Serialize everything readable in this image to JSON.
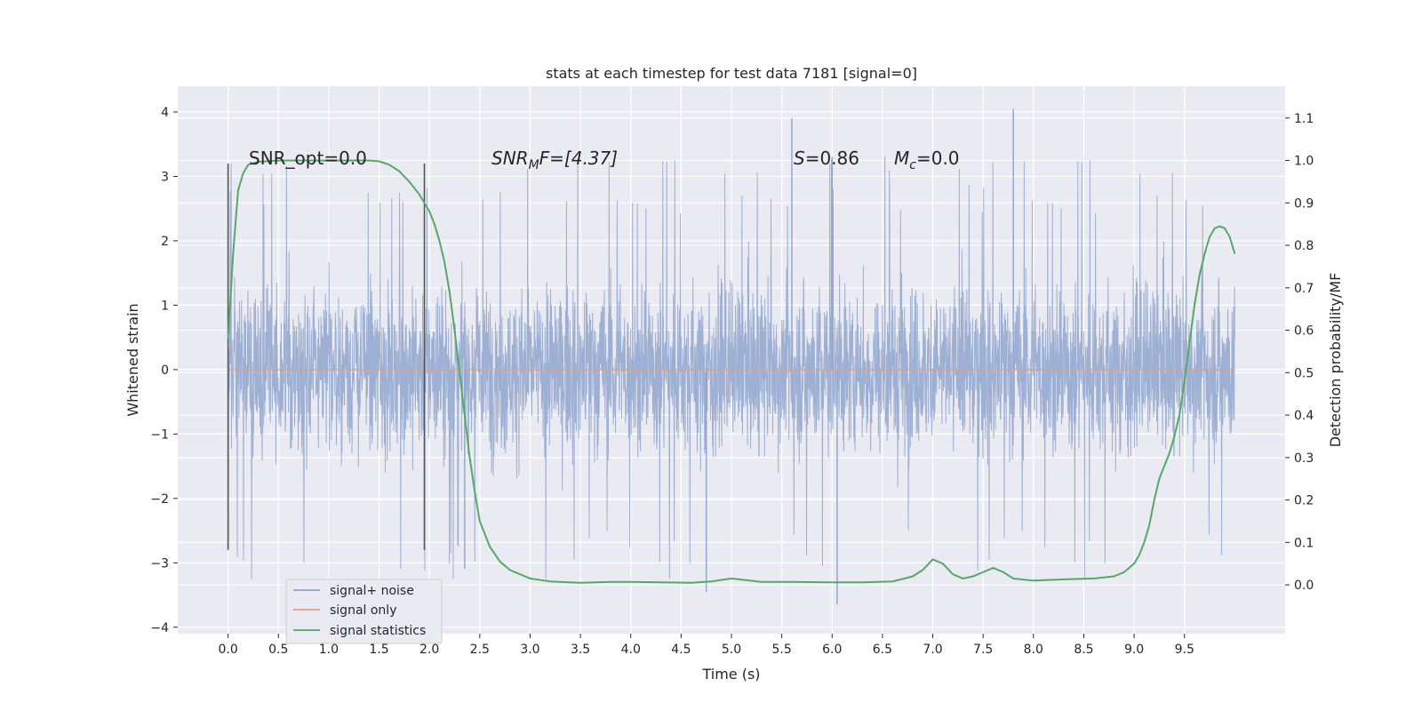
{
  "chart_data": {
    "type": "line",
    "title": "stats at each timestep for test data 7181 [signal=0]",
    "xlabel": "Time (s)",
    "ylabel": "Whitened strain",
    "y2label": "Detection probability/MF",
    "xlim": [
      -0.5,
      10.5
    ],
    "ylim": [
      -4.1,
      4.4
    ],
    "y2lim": [
      -0.115,
      1.175
    ],
    "x_ticks": [
      "0.0",
      "0.5",
      "1.0",
      "1.5",
      "2.0",
      "2.5",
      "3.0",
      "3.5",
      "4.0",
      "4.5",
      "5.0",
      "5.5",
      "6.0",
      "6.5",
      "7.0",
      "7.5",
      "8.0",
      "8.5",
      "9.0",
      "9.5"
    ],
    "y_ticks": [
      "4",
      "3",
      "2",
      "1",
      "0",
      "−1",
      "−2",
      "−3",
      "−4"
    ],
    "y2_ticks": [
      "1.1",
      "1.0",
      "0.9",
      "0.8",
      "0.7",
      "0.6",
      "0.5",
      "0.4",
      "0.3",
      "0.2",
      "0.1",
      "0.0"
    ],
    "grid": true,
    "legend_position": "lower-left",
    "annotations": {
      "snr_opt": "SNR_opt=0.0",
      "snr_mf_pre": "SNR",
      "snr_mf_sub": "M",
      "snr_mf_post": "F=[4.37]",
      "s_italic": "S",
      "s_value": "=0.86",
      "mc_italic": "M",
      "mc_sub": "c",
      "mc_value": "=0.0"
    },
    "window_markers_x": [
      0.0,
      1.95
    ],
    "series": [
      {
        "name": "signal+ noise",
        "color": "#8fa4cc",
        "x_range": [
          0.0,
          10.0
        ],
        "typical_range": [
          -1.4,
          1.4
        ],
        "extremes": [
          -3.65,
          4.05
        ]
      },
      {
        "name": "signal only",
        "color": "#e1a08a",
        "x_range": [
          0.0,
          10.0
        ],
        "values": [
          0.0
        ]
      },
      {
        "name": "signal statistics",
        "color": "#55a868",
        "x": [
          0.0,
          0.05,
          0.1,
          0.15,
          0.2,
          0.3,
          0.5,
          0.8,
          1.0,
          1.2,
          1.4,
          1.5,
          1.6,
          1.7,
          1.8,
          1.9,
          2.0,
          2.05,
          2.1,
          2.15,
          2.2,
          2.25,
          2.3,
          2.35,
          2.4,
          2.45,
          2.5,
          2.6,
          2.7,
          2.8,
          3.0,
          3.2,
          3.5,
          3.8,
          4.0,
          4.3,
          4.6,
          4.8,
          5.0,
          5.3,
          5.6,
          6.0,
          6.3,
          6.6,
          6.8,
          6.9,
          7.0,
          7.1,
          7.2,
          7.3,
          7.4,
          7.5,
          7.6,
          7.7,
          7.8,
          8.0,
          8.3,
          8.6,
          8.8,
          8.9,
          9.0,
          9.05,
          9.1,
          9.15,
          9.2,
          9.25,
          9.3,
          9.35,
          9.4,
          9.45,
          9.5,
          9.55,
          9.6,
          9.65,
          9.7,
          9.75,
          9.8,
          9.85,
          9.9,
          9.95,
          10.0
        ],
        "values": [
          0.58,
          0.78,
          0.93,
          0.97,
          0.99,
          0.997,
          1.0,
          1.0,
          1.0,
          1.0,
          1.0,
          0.998,
          0.99,
          0.975,
          0.95,
          0.92,
          0.88,
          0.85,
          0.81,
          0.76,
          0.69,
          0.6,
          0.5,
          0.4,
          0.3,
          0.22,
          0.15,
          0.09,
          0.055,
          0.035,
          0.015,
          0.008,
          0.005,
          0.007,
          0.007,
          0.006,
          0.005,
          0.008,
          0.015,
          0.007,
          0.007,
          0.006,
          0.006,
          0.008,
          0.02,
          0.035,
          0.06,
          0.05,
          0.025,
          0.015,
          0.02,
          0.03,
          0.04,
          0.03,
          0.015,
          0.01,
          0.013,
          0.015,
          0.02,
          0.03,
          0.05,
          0.07,
          0.1,
          0.14,
          0.2,
          0.25,
          0.28,
          0.31,
          0.35,
          0.4,
          0.48,
          0.57,
          0.66,
          0.73,
          0.78,
          0.82,
          0.84,
          0.845,
          0.84,
          0.82,
          0.78
        ]
      }
    ]
  },
  "colors": {
    "plot_bg": "#eaeaf2",
    "grid": "#ffffff",
    "text": "#262626",
    "marker_line": "#555555"
  }
}
